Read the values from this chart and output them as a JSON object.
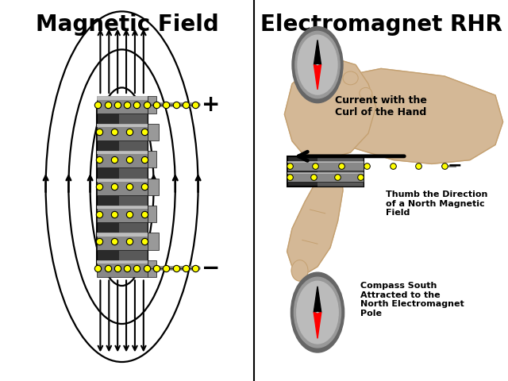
{
  "bg_color": "#ffffff",
  "left_title": "Magnetic Field",
  "right_title": "Electromagnet RHR",
  "title_fontsize": 20,
  "title_fontweight": "bold",
  "yellow_dot_color": "#ffff00",
  "yellow_dot_edge": "#000000",
  "plus_label": "+",
  "minus_label": "−",
  "current_text": "Current with the\nCurl of the Hand",
  "thumb_text": "Thumb the Direction\nof a North Magnetic\nField",
  "compass_text": "Compass South\nAttracted to the\nNorth Electromagnet\nPole",
  "skin_color": "#d4b896",
  "skin_shadow": "#c4a070",
  "skin_light": "#e8d0b0"
}
